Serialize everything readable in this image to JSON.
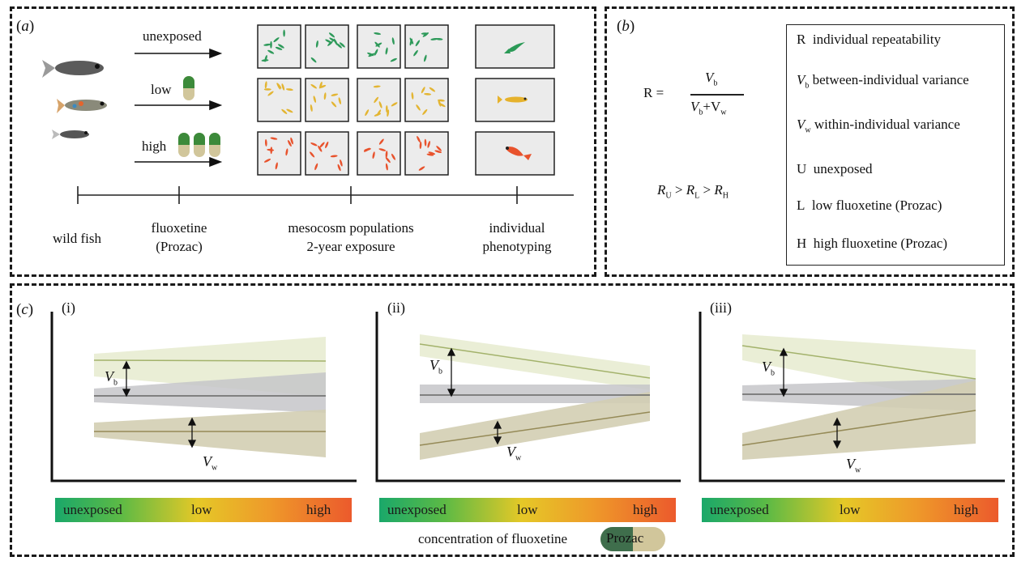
{
  "panel_a": {
    "label": "a",
    "arrows": [
      "unexposed",
      "low",
      "high"
    ],
    "timeline": {
      "wild_fish": "wild fish",
      "fluoxetine_line1": "fluoxetine",
      "fluoxetine_line2": "(Prozac)",
      "mesocosm_line1": "mesocosm populations",
      "mesocosm_line2": "2-year exposure",
      "phenotyping_line1": "individual",
      "phenotyping_line2": "phenotyping"
    },
    "treatment_colors": {
      "unexposed": "#2e9a5a",
      "low": "#e3b532",
      "high": "#e8522c"
    }
  },
  "panel_b": {
    "label": "b",
    "formula": {
      "lhs": "R =",
      "numerator": "V",
      "numerator_sub": "b",
      "den_a": "V",
      "den_a_sub": "b",
      "den_b": "+V",
      "den_b_sub": "w"
    },
    "inequality": {
      "r1": "R",
      "s1": "U",
      "r2": "R",
      "s2": "L",
      "r3": "R",
      "s3": "H",
      "op": ">"
    },
    "legend": [
      {
        "sym": "R",
        "sub": "",
        "text": "individual repeatability"
      },
      {
        "sym": "V",
        "sub": "b",
        "text": "between-individual variance"
      },
      {
        "sym": "V",
        "sub": "w",
        "text": "within-individual variance"
      },
      {
        "sym": "U",
        "sub": "",
        "text": "unexposed"
      },
      {
        "sym": "L",
        "sub": "",
        "text": "low fluoxetine (Prozac)"
      },
      {
        "sym": "H",
        "sub": "",
        "text": "high fluoxetine (Prozac)"
      }
    ]
  },
  "panel_c": {
    "label": "c",
    "subpanels": [
      "(i)",
      "(ii)",
      "(iii)"
    ],
    "vb_label": "V",
    "vb_sub": "b",
    "vw_label": "V",
    "vw_sub": "w",
    "bar_labels": {
      "unexposed": "unexposed",
      "low": "low",
      "high": "high"
    },
    "caption": "concentration of fluoxetine",
    "pill_label": "Prozac",
    "colors": {
      "top_band": "#e6ebcf",
      "top_line": "#a3b26b",
      "mid_band": "#c9c9cc",
      "mid_line": "#666666",
      "bottom_band": "#d6d1b6",
      "bottom_line": "#958a57"
    }
  }
}
